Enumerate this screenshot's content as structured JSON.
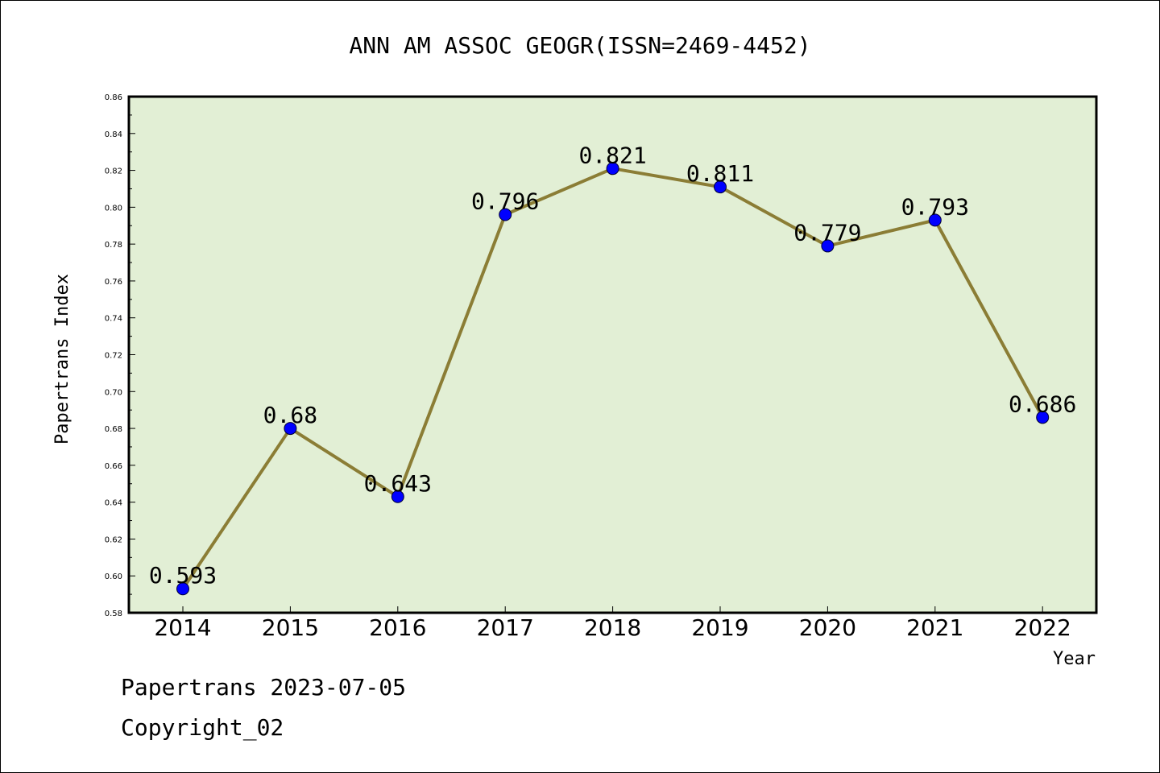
{
  "chart_data": {
    "type": "line",
    "title": "ANN AM ASSOC GEOGR(ISSN=2469-4452)",
    "xlabel": "Year",
    "ylabel": "Papertrans Index",
    "categories": [
      "2014",
      "2015",
      "2016",
      "2017",
      "2018",
      "2019",
      "2020",
      "2021",
      "2022"
    ],
    "values": [
      0.593,
      0.68,
      0.643,
      0.796,
      0.821,
      0.811,
      0.779,
      0.793,
      0.686
    ],
    "data_labels": [
      "0.593",
      "0.68",
      "0.643",
      "0.796",
      "0.821",
      "0.811",
      "0.779",
      "0.793",
      "0.686"
    ],
    "ylim": [
      0.58,
      0.86
    ],
    "yticks": [
      "0.58",
      "0.60",
      "0.62",
      "0.64",
      "0.66",
      "0.68",
      "0.70",
      "0.72",
      "0.74",
      "0.76",
      "0.78",
      "0.80",
      "0.82",
      "0.84",
      "0.86"
    ],
    "grid": false,
    "legend": "none",
    "colors": {
      "plot_background": "#e2efd5",
      "line": "#8b7d35",
      "marker": "#0000ff"
    }
  },
  "footer": {
    "line1": "Papertrans 2023-07-05",
    "line2": "Copyright_02"
  }
}
